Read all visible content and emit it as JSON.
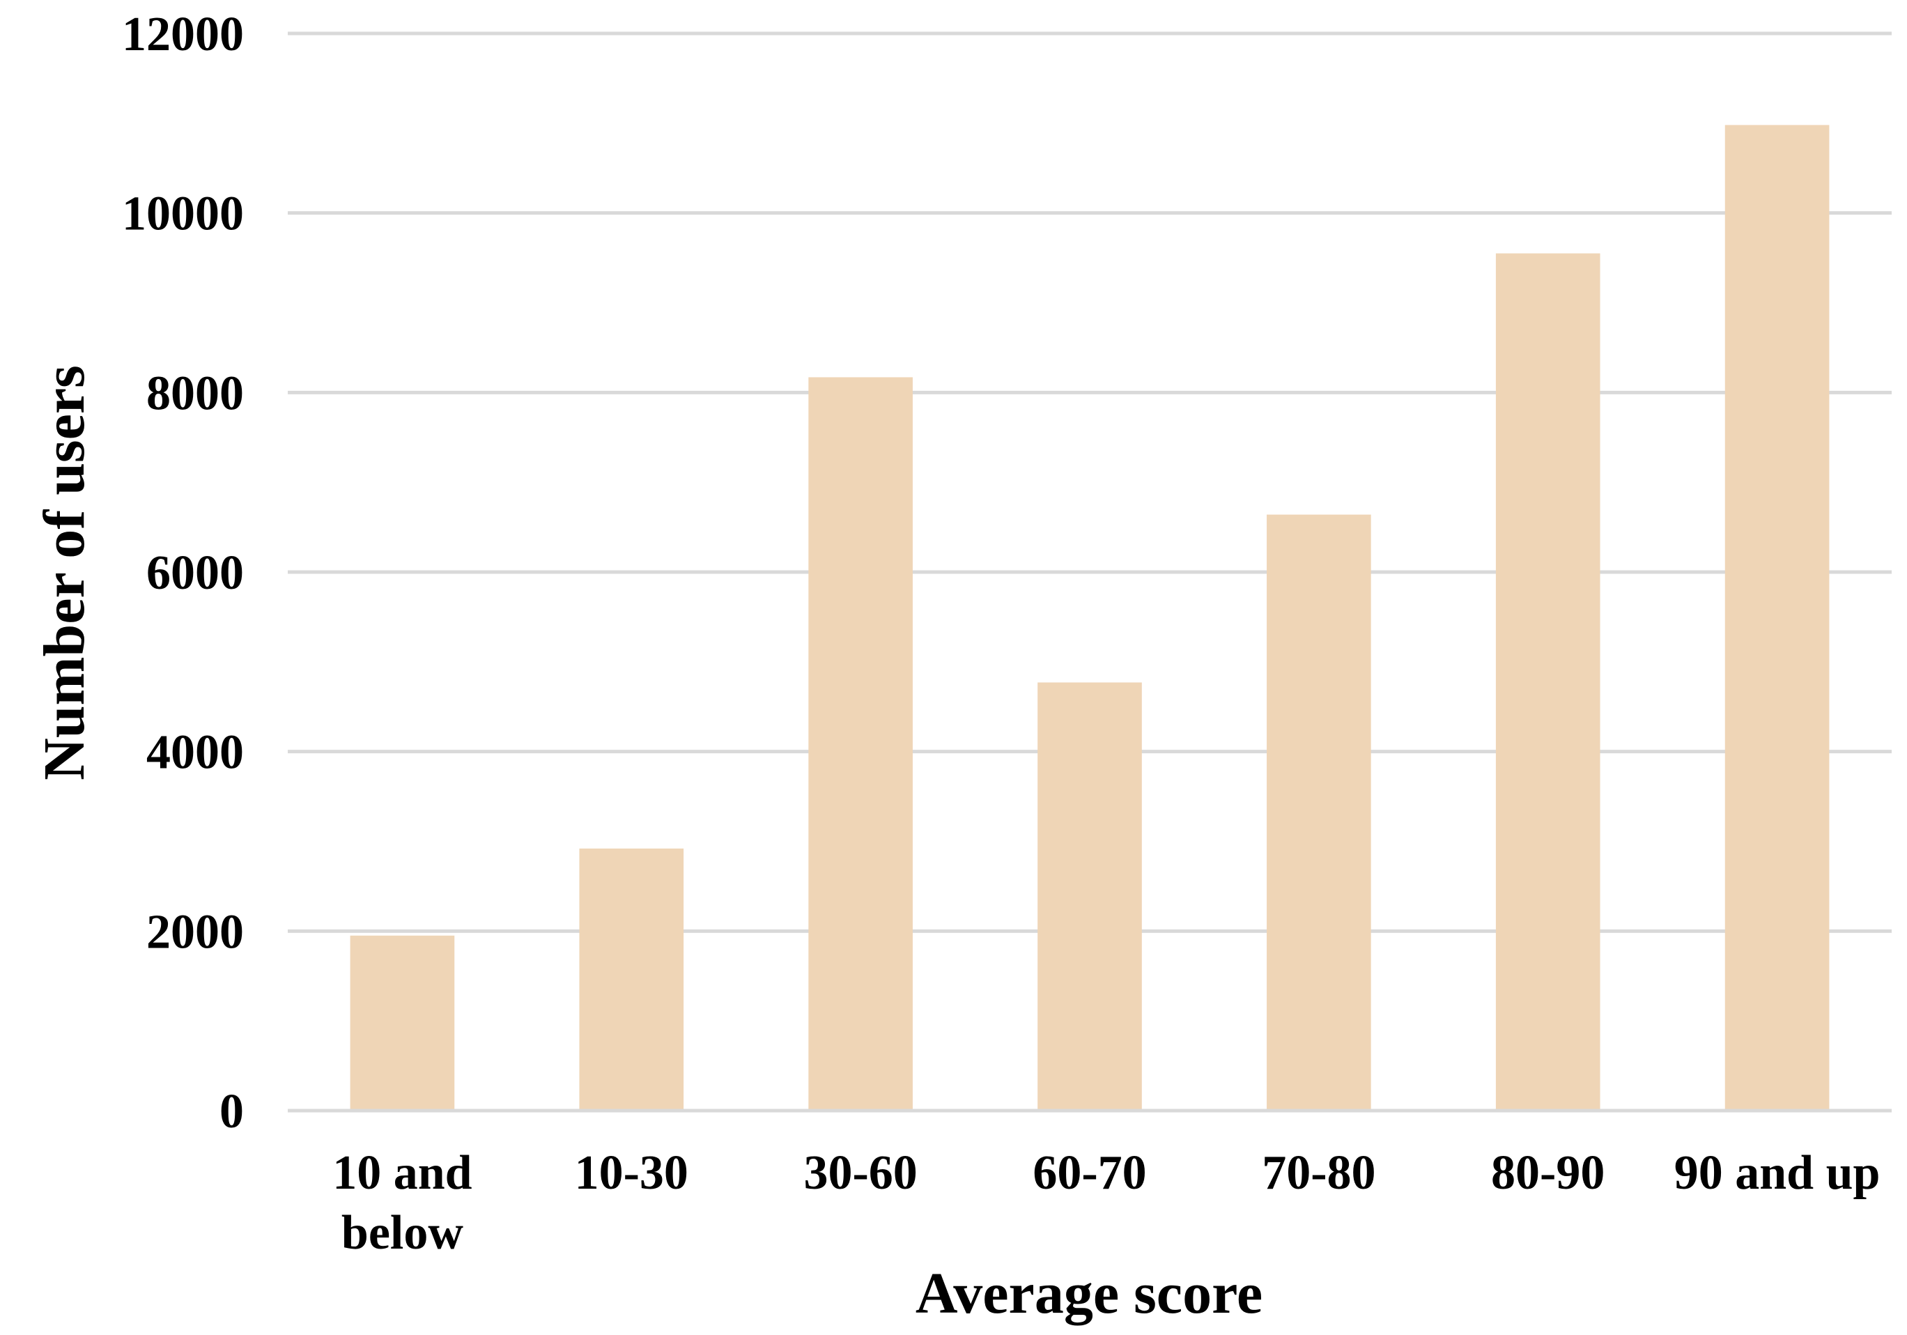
{
  "chart_data": {
    "type": "bar",
    "categories": [
      "10 and below",
      "10-30",
      "30-60",
      "60-70",
      "70-80",
      "80-90",
      "90 and up"
    ],
    "category_lines": [
      [
        "10 and",
        "below"
      ],
      [
        "10-30"
      ],
      [
        "30-60"
      ],
      [
        "60-70"
      ],
      [
        "70-80"
      ],
      [
        "80-90"
      ],
      [
        "90 and up"
      ]
    ],
    "values": [
      1950,
      2920,
      8170,
      4770,
      6640,
      9550,
      10980
    ],
    "xlabel": "Average score",
    "ylabel": "Number of users",
    "ylim": [
      0,
      12000
    ],
    "yticks": [
      0,
      2000,
      4000,
      6000,
      8000,
      10000,
      12000
    ],
    "grid": true,
    "legend": "none",
    "colors": {
      "bar": "#efd5b6",
      "grid": "#d9d9d9",
      "text": "#000000"
    }
  }
}
